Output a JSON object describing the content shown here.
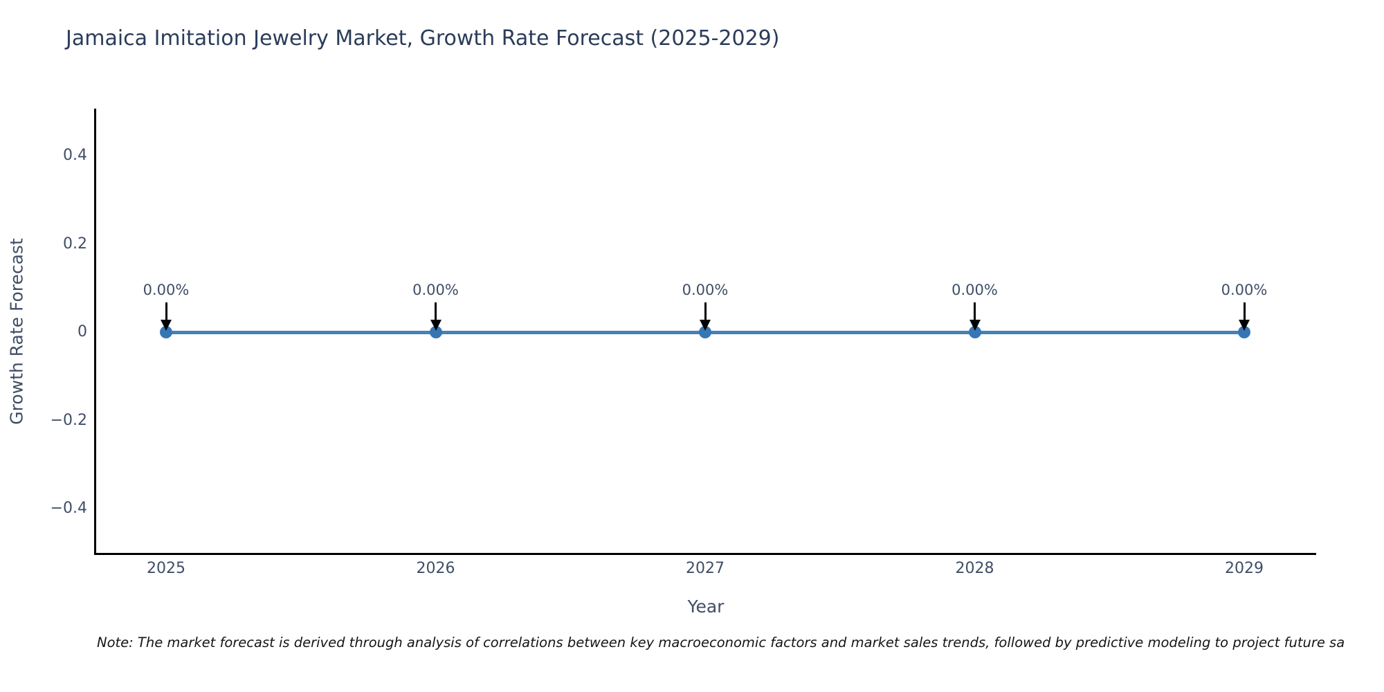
{
  "header": {
    "title": "Jamaica Imitation Jewelry Market, Growth Rate Forecast (2025-2029)"
  },
  "chart_data": {
    "type": "line",
    "title": "Jamaica Imitation Jewelry Market, Growth Rate Forecast (2025-2029)",
    "categories": [
      "2025",
      "2026",
      "2027",
      "2028",
      "2029"
    ],
    "series": [
      {
        "name": "Growth Rate Forecast",
        "values": [
          0,
          0,
          0,
          0,
          0
        ]
      }
    ],
    "point_labels": [
      "0.00%",
      "0.00%",
      "0.00%",
      "0.00%",
      "0.00%"
    ],
    "xlabel": "Year",
    "ylabel": "Growth Rate Forecast",
    "yticks": [
      {
        "label": "0.4",
        "value": 0.4
      },
      {
        "label": "0.2",
        "value": 0.2
      },
      {
        "label": "0",
        "value": 0
      },
      {
        "label": "−0.2",
        "value": -0.2
      },
      {
        "label": "−0.4",
        "value": -0.4
      }
    ],
    "ylim": [
      -0.5,
      0.5
    ],
    "grid": false,
    "legend": "none",
    "colors": {
      "line": "#4682b4",
      "marker": "#3776b5",
      "arrow": "#000000",
      "title_text": "#2b3c5a",
      "axis_text": "#3f4e66",
      "spine": "#000000"
    }
  },
  "note": {
    "text": "Note: The market forecast is derived through analysis of correlations between key macroeconomic factors and market sales trends, followed by predictive modeling to project future sa"
  }
}
